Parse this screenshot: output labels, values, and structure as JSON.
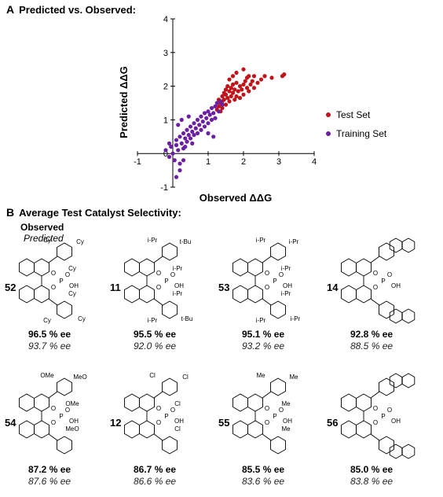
{
  "panel_a": {
    "letter": "A",
    "title": "Predicted vs. Observed:"
  },
  "panel_b": {
    "letter": "B",
    "title": "Average Test Catalyst Selectivity:"
  },
  "header": {
    "observed": "Observed",
    "predicted": "Predicted"
  },
  "chart_data": {
    "type": "scatter",
    "title": "",
    "xlabel": "Observed ΔΔG",
    "ylabel": "Predicted ΔΔG",
    "xlim": [
      -1,
      4
    ],
    "ylim": [
      -1,
      4
    ],
    "xticks": [
      "-1",
      "1",
      "2",
      "3",
      "4"
    ],
    "yticks": [
      "-1",
      "1",
      "2",
      "3",
      "4"
    ],
    "origin_tick": "0",
    "grid": false,
    "legend_position": "right",
    "series": [
      {
        "name": "Test Set",
        "color": "#c0141a",
        "points": [
          [
            1.3,
            1.4
          ],
          [
            1.35,
            1.5
          ],
          [
            1.4,
            1.55
          ],
          [
            1.4,
            1.7
          ],
          [
            1.45,
            1.6
          ],
          [
            1.45,
            1.8
          ],
          [
            1.5,
            1.75
          ],
          [
            1.5,
            1.9
          ],
          [
            1.55,
            1.65
          ],
          [
            1.55,
            2.0
          ],
          [
            1.6,
            1.85
          ],
          [
            1.6,
            1.55
          ],
          [
            1.65,
            1.95
          ],
          [
            1.65,
            1.7
          ],
          [
            1.7,
            1.8
          ],
          [
            1.7,
            2.05
          ],
          [
            1.75,
            1.6
          ],
          [
            1.75,
            1.9
          ],
          [
            1.8,
            1.7
          ],
          [
            1.8,
            2.1
          ],
          [
            1.85,
            1.85
          ],
          [
            1.9,
            2.0
          ],
          [
            1.9,
            1.65
          ],
          [
            1.95,
            1.9
          ],
          [
            2.0,
            2.05
          ],
          [
            2.0,
            1.75
          ],
          [
            2.05,
            2.15
          ],
          [
            2.1,
            1.95
          ],
          [
            2.1,
            2.25
          ],
          [
            2.15,
            1.85
          ],
          [
            2.2,
            2.05
          ],
          [
            2.25,
            2.15
          ],
          [
            2.3,
            1.95
          ],
          [
            2.3,
            2.3
          ],
          [
            2.4,
            2.1
          ],
          [
            2.5,
            2.2
          ],
          [
            2.6,
            2.3
          ],
          [
            2.8,
            2.25
          ],
          [
            3.1,
            2.3
          ],
          [
            3.15,
            2.35
          ],
          [
            1.25,
            1.3
          ],
          [
            1.3,
            1.6
          ],
          [
            1.35,
            1.25
          ],
          [
            1.4,
            1.35
          ],
          [
            1.5,
            1.45
          ],
          [
            1.6,
            2.2
          ],
          [
            1.7,
            2.3
          ],
          [
            1.8,
            2.4
          ],
          [
            2.0,
            2.5
          ],
          [
            2.15,
            2.3
          ]
        ]
      },
      {
        "name": "Training Set",
        "color": "#6b1fa2",
        "points": [
          [
            -0.2,
            0.1
          ],
          [
            -0.1,
            -0.1
          ],
          [
            -0.05,
            0.2
          ],
          [
            0.0,
            0.0
          ],
          [
            0.05,
            -0.2
          ],
          [
            0.1,
            0.25
          ],
          [
            0.1,
            0.4
          ],
          [
            0.15,
            0.1
          ],
          [
            0.2,
            0.5
          ],
          [
            0.2,
            -0.3
          ],
          [
            0.25,
            0.3
          ],
          [
            0.3,
            0.6
          ],
          [
            0.3,
            0.15
          ],
          [
            0.35,
            0.45
          ],
          [
            0.4,
            0.7
          ],
          [
            0.4,
            0.35
          ],
          [
            0.45,
            0.55
          ],
          [
            0.5,
            0.8
          ],
          [
            0.5,
            0.45
          ],
          [
            0.55,
            0.65
          ],
          [
            0.6,
            0.9
          ],
          [
            0.6,
            0.55
          ],
          [
            0.65,
            0.75
          ],
          [
            0.7,
            1.0
          ],
          [
            0.7,
            0.6
          ],
          [
            0.75,
            0.85
          ],
          [
            0.8,
            1.1
          ],
          [
            0.8,
            0.7
          ],
          [
            0.85,
            0.95
          ],
          [
            0.9,
            1.2
          ],
          [
            0.9,
            0.8
          ],
          [
            0.95,
            1.05
          ],
          [
            1.0,
            1.25
          ],
          [
            1.0,
            0.9
          ],
          [
            1.05,
            1.15
          ],
          [
            1.1,
            1.35
          ],
          [
            1.1,
            1.0
          ],
          [
            1.15,
            1.2
          ],
          [
            1.2,
            1.4
          ],
          [
            1.2,
            1.05
          ],
          [
            1.25,
            1.5
          ],
          [
            1.3,
            1.25
          ],
          [
            1.35,
            1.55
          ],
          [
            1.4,
            1.45
          ],
          [
            0.1,
            -0.7
          ],
          [
            0.2,
            -0.5
          ],
          [
            0.3,
            -0.2
          ],
          [
            0.15,
            0.85
          ],
          [
            0.25,
            1.0
          ],
          [
            0.45,
            1.1
          ],
          [
            1.15,
            0.5
          ],
          [
            1.0,
            0.6
          ],
          [
            0.55,
            0.3
          ],
          [
            0.35,
            0.2
          ],
          [
            -0.1,
            0.3
          ]
        ]
      }
    ]
  },
  "catalysts": [
    {
      "id": "52",
      "observed": "96.5 % ee",
      "predicted": "93.7 % ee",
      "substituents": [
        "Cy",
        "Cy",
        "Cy",
        "Cy",
        "Cy",
        "Cy"
      ]
    },
    {
      "id": "11",
      "observed": "95.5 % ee",
      "predicted": "92.0 % ee",
      "substituents": [
        "t-Bu",
        "i-Pr",
        "i-Pr",
        "i-Pr",
        "i-Pr",
        "t-Bu"
      ]
    },
    {
      "id": "53",
      "observed": "95.1 % ee",
      "predicted": "93.2 % ee",
      "substituents": [
        "i-Pr",
        "i-Pr",
        "i-Pr",
        "i-Pr",
        "i-Pr",
        "i-Pr"
      ]
    },
    {
      "id": "14",
      "observed": "92.8 % ee",
      "predicted": "88.5 % ee",
      "substituents": []
    },
    {
      "id": "54",
      "observed": "87.2 % ee",
      "predicted": "87.6 % ee",
      "substituents": [
        "MeO",
        "OMe",
        "OMe",
        "MeO"
      ]
    },
    {
      "id": "12",
      "observed": "86.7 % ee",
      "predicted": "86.6 % ee",
      "substituents": [
        "Cl",
        "Cl",
        "Cl",
        "Cl"
      ]
    },
    {
      "id": "55",
      "observed": "85.5 % ee",
      "predicted": "83.6 % ee",
      "substituents": [
        "Me",
        "Me",
        "Me",
        "Me"
      ]
    },
    {
      "id": "56",
      "observed": "85.0 % ee",
      "predicted": "83.8 % ee",
      "substituents": []
    }
  ],
  "phosphate": {
    "o1": "O",
    "o2": "O",
    "p": "P",
    "o3": "O",
    "oh": "OH"
  }
}
